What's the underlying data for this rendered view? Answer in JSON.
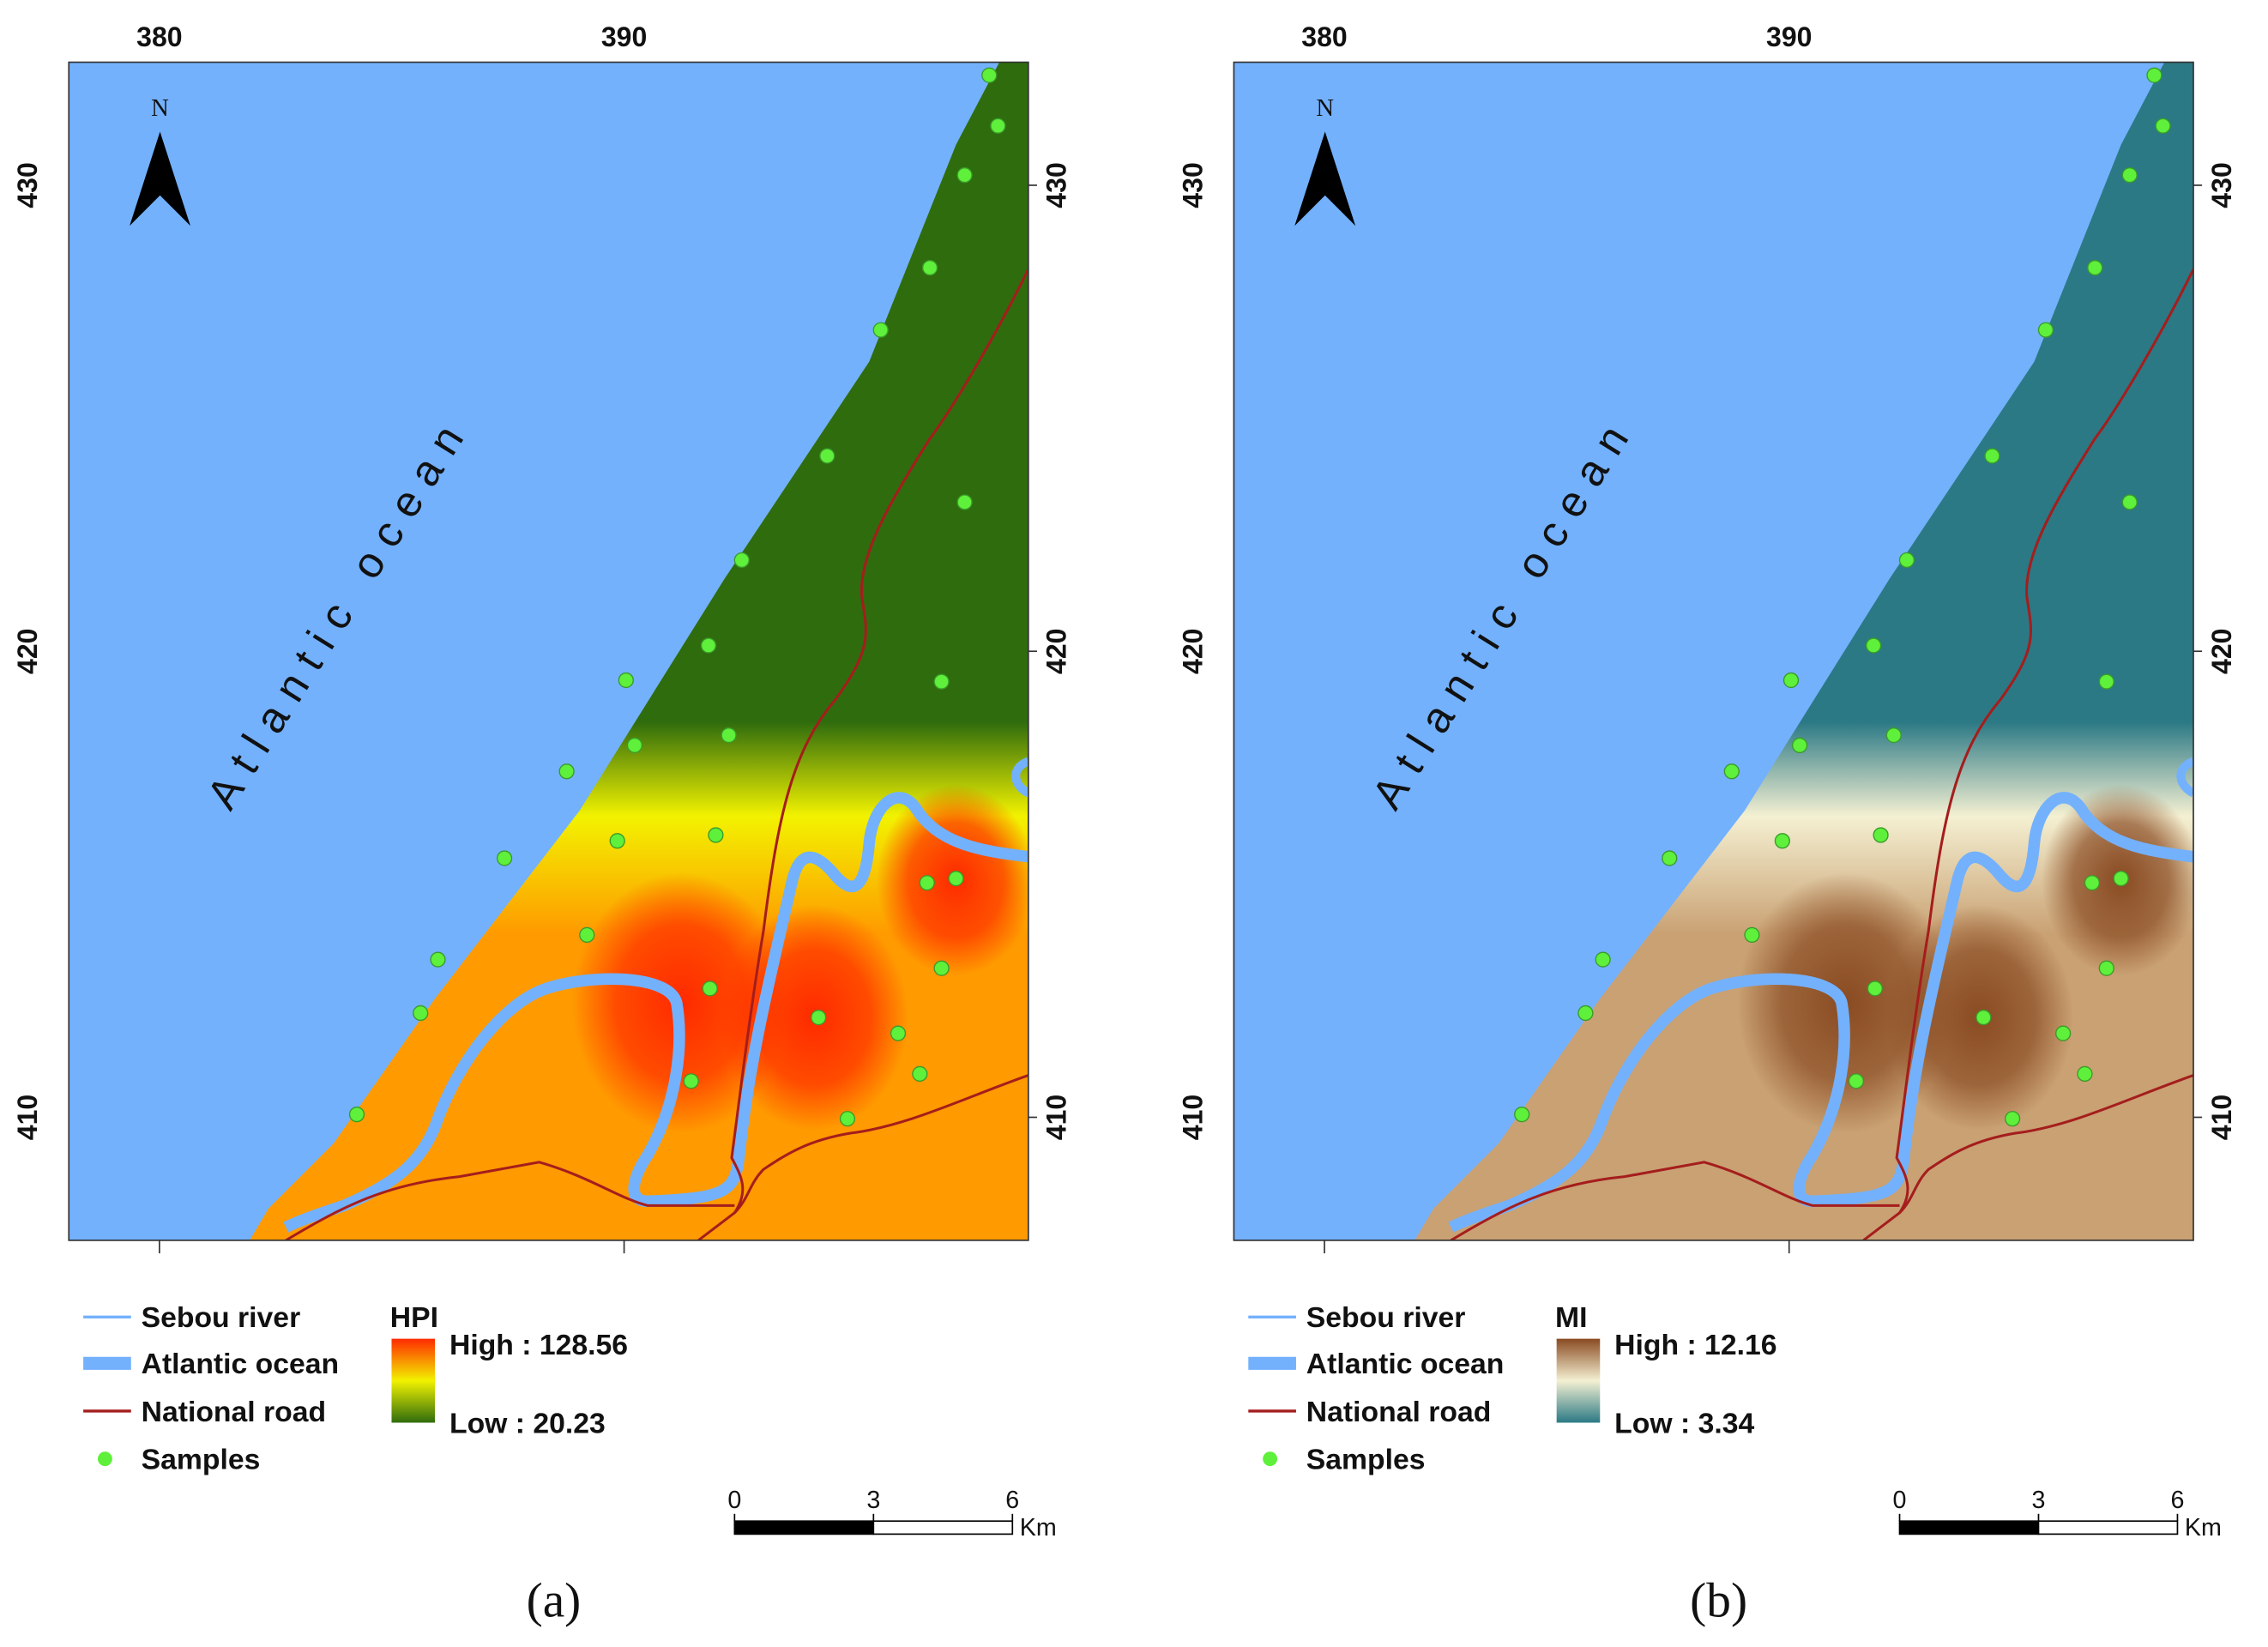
{
  "panels": [
    {
      "caption": "(a)",
      "north": "N",
      "ocean_label": "Atlantic ocean",
      "xlim": [
        378.05,
        398.7
      ],
      "ylim": [
        407.36,
        432.64
      ],
      "xticks": [
        380,
        390
      ],
      "yticks": [
        430,
        420,
        410
      ],
      "legend": [
        "Sebou river",
        "Atlantic ocean",
        "National road",
        "Samples"
      ],
      "colorbar": {
        "title": "HPI",
        "high": "High : 128.56",
        "low": "Low : 20.23",
        "colors": [
          "#ff2a00",
          "#ff9a00",
          "#f2f200",
          "#2f6c0d"
        ]
      },
      "scale": {
        "ticks": [
          0,
          3,
          6
        ],
        "unit": "Km"
      }
    },
    {
      "caption": "(b)",
      "north": "N",
      "ocean_label": "Atlantic ocean",
      "xlim": [
        378.05,
        398.7
      ],
      "ylim": [
        407.36,
        432.64
      ],
      "xticks": [
        380,
        390
      ],
      "yticks": [
        430,
        420,
        410
      ],
      "legend": [
        "Sebou river",
        "Atlantic ocean",
        "National road",
        "Samples"
      ],
      "colorbar": {
        "title": "MI",
        "high": "High : 12.16",
        "low": "Low : 3.34",
        "colors": [
          "#8a4b22",
          "#c9a173",
          "#f4f0d2",
          "#2b7985"
        ]
      },
      "scale": {
        "ticks": [
          0,
          3,
          6
        ],
        "unit": "Km"
      }
    }
  ]
}
